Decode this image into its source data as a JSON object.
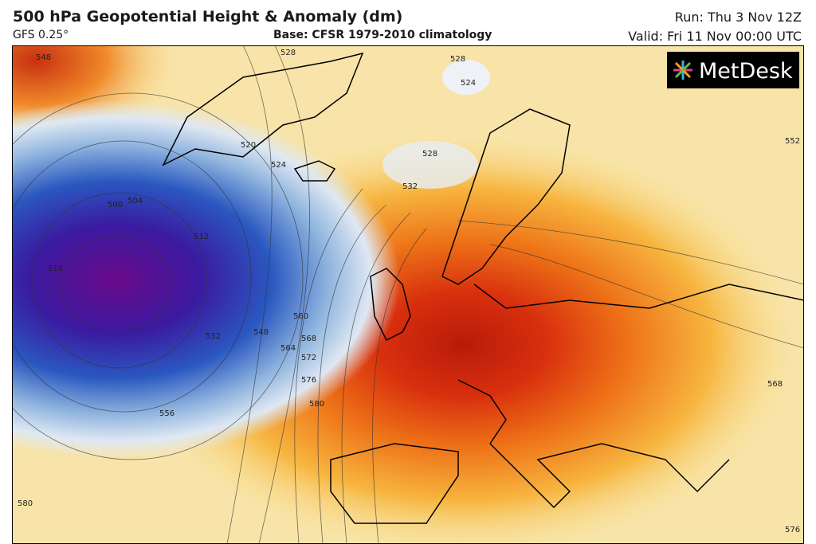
{
  "header": {
    "title": "500 hPa Geopotential Height & Anomaly (dm)",
    "model": "GFS 0.25°",
    "base": "Base: CFSR 1979-2010 climatology",
    "run": "Run: Thu 3 Nov 12Z",
    "valid": "Valid: Fri 11 Nov 00:00 UTC"
  },
  "logo": "MetDesk",
  "contour_labels": [
    548,
    528,
    528,
    524,
    520,
    524,
    528,
    532,
    504,
    500,
    512,
    516,
    532,
    548,
    556,
    560,
    564,
    568,
    572,
    576,
    580,
    568,
    552,
    576,
    580
  ]
}
